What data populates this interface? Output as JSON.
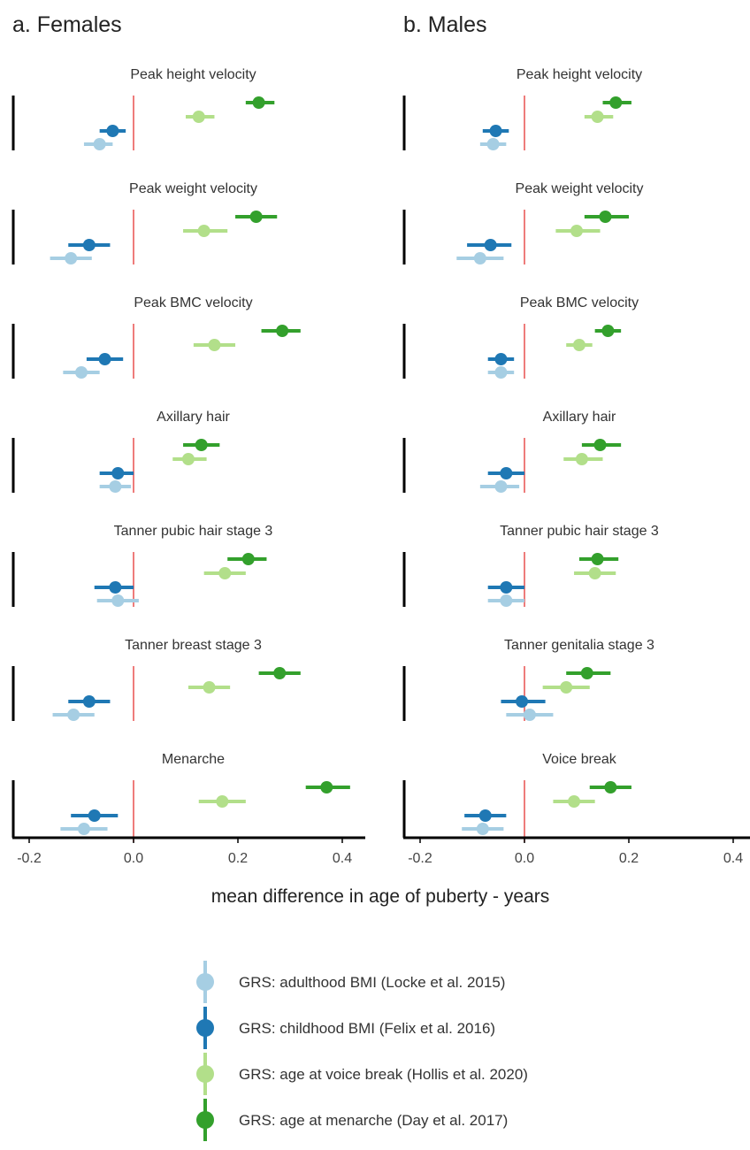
{
  "chart_data": {
    "type": "scatter",
    "xlabel": "mean difference in age of puberty - years",
    "xlim": [
      -0.22,
      0.45
    ],
    "xticks": [
      -0.2,
      0.0,
      0.2,
      0.4
    ],
    "xtick_labels": [
      "-0.2",
      "0.0",
      "0.2",
      "0.4"
    ],
    "reference_line": {
      "x": 0,
      "color": "#e8514f"
    },
    "legend_position": "bottom",
    "series": [
      {
        "key": "adult",
        "name": "GRS: adulthood BMI (Locke et al. 2015)",
        "color": "#a6cee3"
      },
      {
        "key": "child",
        "name": "GRS: childhood BMI (Felix et al. 2016)",
        "color": "#1f78b4"
      },
      {
        "key": "voice",
        "name": "GRS: age at voice break (Hollis et al. 2020)",
        "color": "#b2df8a"
      },
      {
        "key": "menarche",
        "name": "GRS: age at menarche (Day et al. 2017)",
        "color": "#33a02c"
      }
    ],
    "panels": [
      {
        "title": "a. Females",
        "facets": [
          {
            "label": "Peak height velocity",
            "points": [
              {
                "series": "adult",
                "est": -0.065,
                "lo": -0.095,
                "hi": -0.04
              },
              {
                "series": "child",
                "est": -0.04,
                "lo": -0.065,
                "hi": -0.015
              },
              {
                "series": "voice",
                "est": 0.125,
                "lo": 0.1,
                "hi": 0.155
              },
              {
                "series": "menarche",
                "est": 0.24,
                "lo": 0.215,
                "hi": 0.27
              }
            ]
          },
          {
            "label": "Peak weight velocity",
            "points": [
              {
                "series": "adult",
                "est": -0.12,
                "lo": -0.16,
                "hi": -0.08
              },
              {
                "series": "child",
                "est": -0.085,
                "lo": -0.125,
                "hi": -0.045
              },
              {
                "series": "voice",
                "est": 0.135,
                "lo": 0.095,
                "hi": 0.18
              },
              {
                "series": "menarche",
                "est": 0.235,
                "lo": 0.195,
                "hi": 0.275
              }
            ]
          },
          {
            "label": "Peak BMC velocity",
            "points": [
              {
                "series": "adult",
                "est": -0.1,
                "lo": -0.135,
                "hi": -0.065
              },
              {
                "series": "child",
                "est": -0.055,
                "lo": -0.09,
                "hi": -0.02
              },
              {
                "series": "voice",
                "est": 0.155,
                "lo": 0.115,
                "hi": 0.195
              },
              {
                "series": "menarche",
                "est": 0.285,
                "lo": 0.245,
                "hi": 0.32
              }
            ]
          },
          {
            "label": "Axillary hair",
            "points": [
              {
                "series": "adult",
                "est": -0.035,
                "lo": -0.065,
                "hi": -0.005
              },
              {
                "series": "child",
                "est": -0.03,
                "lo": -0.065,
                "hi": 0.0
              },
              {
                "series": "voice",
                "est": 0.105,
                "lo": 0.075,
                "hi": 0.14
              },
              {
                "series": "menarche",
                "est": 0.13,
                "lo": 0.095,
                "hi": 0.165
              }
            ]
          },
          {
            "label": "Tanner pubic hair stage 3",
            "points": [
              {
                "series": "adult",
                "est": -0.03,
                "lo": -0.07,
                "hi": 0.01
              },
              {
                "series": "child",
                "est": -0.035,
                "lo": -0.075,
                "hi": 0.0
              },
              {
                "series": "voice",
                "est": 0.175,
                "lo": 0.135,
                "hi": 0.215
              },
              {
                "series": "menarche",
                "est": 0.22,
                "lo": 0.18,
                "hi": 0.255
              }
            ]
          },
          {
            "label": "Tanner breast stage 3",
            "points": [
              {
                "series": "adult",
                "est": -0.115,
                "lo": -0.155,
                "hi": -0.075
              },
              {
                "series": "child",
                "est": -0.085,
                "lo": -0.125,
                "hi": -0.045
              },
              {
                "series": "voice",
                "est": 0.145,
                "lo": 0.105,
                "hi": 0.185
              },
              {
                "series": "menarche",
                "est": 0.28,
                "lo": 0.24,
                "hi": 0.32
              }
            ]
          },
          {
            "label": "Menarche",
            "points": [
              {
                "series": "adult",
                "est": -0.095,
                "lo": -0.14,
                "hi": -0.05
              },
              {
                "series": "child",
                "est": -0.075,
                "lo": -0.12,
                "hi": -0.03
              },
              {
                "series": "voice",
                "est": 0.17,
                "lo": 0.125,
                "hi": 0.215
              },
              {
                "series": "menarche",
                "est": 0.37,
                "lo": 0.33,
                "hi": 0.415
              }
            ]
          }
        ]
      },
      {
        "title": "b. Males",
        "facets": [
          {
            "label": "Peak height velocity",
            "points": [
              {
                "series": "adult",
                "est": -0.06,
                "lo": -0.085,
                "hi": -0.035
              },
              {
                "series": "child",
                "est": -0.055,
                "lo": -0.08,
                "hi": -0.03
              },
              {
                "series": "voice",
                "est": 0.14,
                "lo": 0.115,
                "hi": 0.17
              },
              {
                "series": "menarche",
                "est": 0.175,
                "lo": 0.15,
                "hi": 0.205
              }
            ]
          },
          {
            "label": "Peak weight velocity",
            "points": [
              {
                "series": "adult",
                "est": -0.085,
                "lo": -0.13,
                "hi": -0.04
              },
              {
                "series": "child",
                "est": -0.065,
                "lo": -0.11,
                "hi": -0.025
              },
              {
                "series": "voice",
                "est": 0.1,
                "lo": 0.06,
                "hi": 0.145
              },
              {
                "series": "menarche",
                "est": 0.155,
                "lo": 0.115,
                "hi": 0.2
              }
            ]
          },
          {
            "label": "Peak BMC velocity",
            "points": [
              {
                "series": "adult",
                "est": -0.045,
                "lo": -0.07,
                "hi": -0.02
              },
              {
                "series": "child",
                "est": -0.045,
                "lo": -0.07,
                "hi": -0.02
              },
              {
                "series": "voice",
                "est": 0.105,
                "lo": 0.08,
                "hi": 0.13
              },
              {
                "series": "menarche",
                "est": 0.16,
                "lo": 0.135,
                "hi": 0.185
              }
            ]
          },
          {
            "label": "Axillary hair",
            "points": [
              {
                "series": "adult",
                "est": -0.045,
                "lo": -0.085,
                "hi": -0.01
              },
              {
                "series": "child",
                "est": -0.035,
                "lo": -0.07,
                "hi": 0.0
              },
              {
                "series": "voice",
                "est": 0.11,
                "lo": 0.075,
                "hi": 0.15
              },
              {
                "series": "menarche",
                "est": 0.145,
                "lo": 0.11,
                "hi": 0.185
              }
            ]
          },
          {
            "label": "Tanner pubic hair stage 3",
            "points": [
              {
                "series": "adult",
                "est": -0.035,
                "lo": -0.07,
                "hi": 0.0
              },
              {
                "series": "child",
                "est": -0.035,
                "lo": -0.07,
                "hi": 0.0
              },
              {
                "series": "voice",
                "est": 0.135,
                "lo": 0.095,
                "hi": 0.175
              },
              {
                "series": "menarche",
                "est": 0.14,
                "lo": 0.105,
                "hi": 0.18
              }
            ]
          },
          {
            "label": "Tanner genitalia stage 3",
            "points": [
              {
                "series": "adult",
                "est": 0.01,
                "lo": -0.035,
                "hi": 0.055
              },
              {
                "series": "child",
                "est": -0.005,
                "lo": -0.045,
                "hi": 0.04
              },
              {
                "series": "voice",
                "est": 0.08,
                "lo": 0.035,
                "hi": 0.125
              },
              {
                "series": "menarche",
                "est": 0.12,
                "lo": 0.08,
                "hi": 0.165
              }
            ]
          },
          {
            "label": "Voice break",
            "points": [
              {
                "series": "adult",
                "est": -0.08,
                "lo": -0.12,
                "hi": -0.04
              },
              {
                "series": "child",
                "est": -0.075,
                "lo": -0.115,
                "hi": -0.035
              },
              {
                "series": "voice",
                "est": 0.095,
                "lo": 0.055,
                "hi": 0.135
              },
              {
                "series": "menarche",
                "est": 0.165,
                "lo": 0.125,
                "hi": 0.205
              }
            ]
          }
        ]
      }
    ]
  }
}
